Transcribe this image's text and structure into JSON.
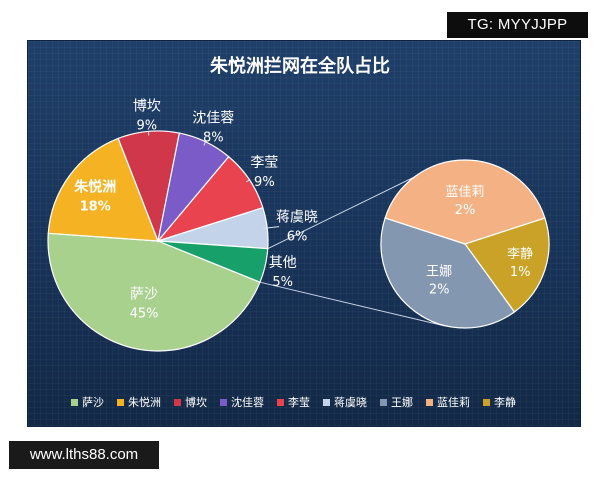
{
  "watermark": "TG: MYYJJPP",
  "url_badge": "www.lths88.com",
  "chart_data": {
    "type": "pie",
    "title": "朱悦洲拦网在全队占比",
    "main_pie": {
      "slices": [
        {
          "name": "萨沙",
          "value": 45,
          "label": "45%",
          "color": "#a9d18e"
        },
        {
          "name": "朱悦洲",
          "value": 18,
          "label": "18%",
          "color": "#f5b324",
          "highlight": true
        },
        {
          "name": "博坎",
          "value": 9,
          "label": "9%",
          "color": "#d0374a"
        },
        {
          "name": "沈佳蓉",
          "value": 8,
          "label": "8%",
          "color": "#7b5bc7"
        },
        {
          "name": "李莹",
          "value": 9,
          "label": "9%",
          "color": "#e8434f"
        },
        {
          "name": "蒋虞晓",
          "value": 6,
          "label": "6%",
          "color": "#c3d3ea"
        },
        {
          "name": "其他",
          "value": 5,
          "label": "5%",
          "color": "#17a06a"
        }
      ]
    },
    "sub_pie": {
      "slices": [
        {
          "name": "蓝佳莉",
          "value": 2,
          "label": "2%",
          "color": "#f4b183"
        },
        {
          "name": "李静",
          "value": 1,
          "label": "1%",
          "color": "#c9a227"
        },
        {
          "name": "王娜",
          "value": 2,
          "label": "2%",
          "color": "#8497b0"
        }
      ]
    },
    "legend": {
      "placement": "bottom",
      "entries": [
        {
          "name": "萨沙",
          "color": "#a9d18e"
        },
        {
          "name": "朱悦洲",
          "color": "#f5b324"
        },
        {
          "name": "博坎",
          "color": "#d0374a"
        },
        {
          "name": "沈佳蓉",
          "color": "#7b5bc7"
        },
        {
          "name": "李莹",
          "color": "#e8434f"
        },
        {
          "name": "蒋虞晓",
          "color": "#c3d3ea"
        },
        {
          "name": "王娜",
          "color": "#8497b0"
        },
        {
          "name": "蓝佳莉",
          "color": "#f4b183"
        },
        {
          "name": "李静",
          "color": "#c9a227"
        }
      ]
    }
  }
}
